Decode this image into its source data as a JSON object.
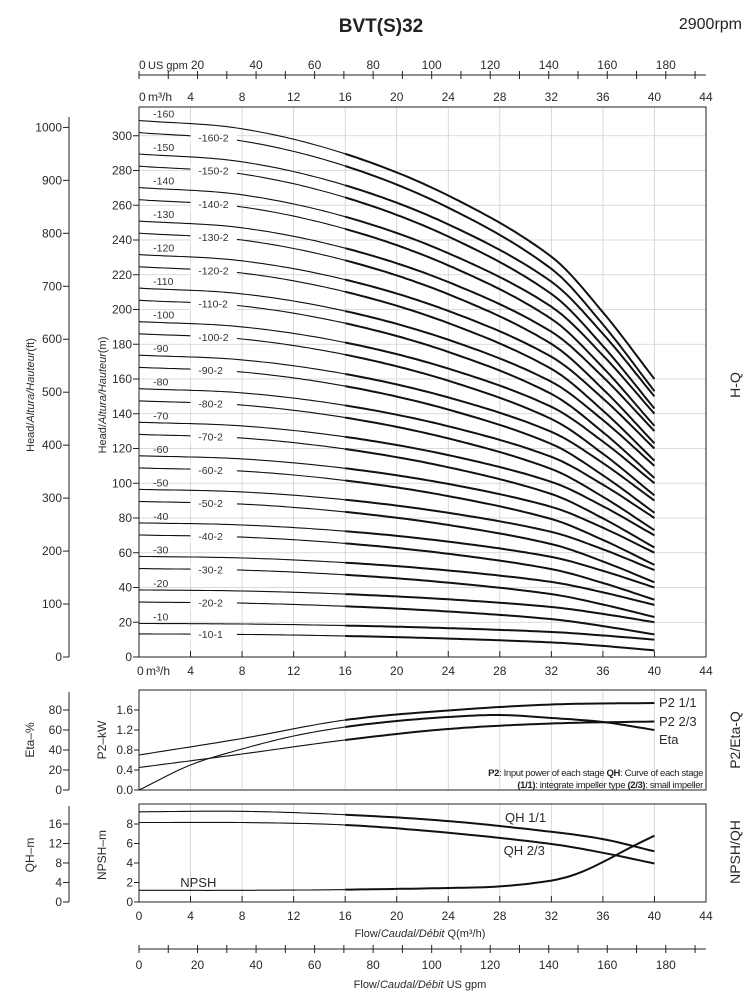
{
  "header": {
    "title": "BVT(S)32",
    "speed": "2900rpm"
  },
  "axes": {
    "top_gpm_unit": "US gpm",
    "m3h_unit": "m³/h",
    "gpm_ticks": [
      0,
      20,
      40,
      60,
      80,
      100,
      120,
      140,
      160,
      180
    ],
    "q_ticks": [
      0,
      4,
      8,
      12,
      16,
      20,
      24,
      28,
      32,
      36,
      40,
      44
    ],
    "caption_q": {
      "a": "Flow/",
      "b": "Caudal/Débit",
      "c": " Q(m³/h)"
    },
    "caption_gpm": {
      "a": "Flow/",
      "b": "Caudal/Débit",
      "c": "  US gpm"
    }
  },
  "chart_data": [
    {
      "type": "line",
      "title": "H-Q",
      "ylabel_m": {
        "a": "Head/",
        "b": "Altura/Hauteur",
        "c": "(m)"
      },
      "ylabel_ft": {
        "a": "Head/",
        "b": "Altura/Hauteur",
        "c": "(ft)"
      },
      "xlim": [
        0,
        44
      ],
      "ylim_m": [
        0,
        316
      ],
      "yticks_m": [
        0,
        20,
        40,
        60,
        80,
        100,
        120,
        140,
        160,
        180,
        200,
        220,
        240,
        260,
        280,
        300
      ],
      "yticks_ft": [
        0,
        100,
        200,
        300,
        400,
        500,
        600,
        700,
        800,
        900,
        1000
      ],
      "grid": true,
      "x": [
        0,
        8,
        16,
        24,
        32,
        36,
        40
      ],
      "series": [
        {
          "name": "-160",
          "values": [
            308.8,
            304,
            289.6,
            265.6,
            230.4,
            198.4,
            160
          ]
        },
        {
          "name": "-160-2",
          "values": [
            301.8,
            297,
            282.6,
            258.6,
            223.4,
            191.4,
            153
          ]
        },
        {
          "name": "-150",
          "values": [
            289.5,
            285,
            271.5,
            249,
            216,
            186,
            150
          ]
        },
        {
          "name": "-150-2",
          "values": [
            282.5,
            278,
            264.5,
            242,
            209,
            179,
            143
          ]
        },
        {
          "name": "-140",
          "values": [
            270.2,
            266,
            253.4,
            232.4,
            201.6,
            173.6,
            140
          ]
        },
        {
          "name": "-140-2",
          "values": [
            263.2,
            259,
            246.4,
            225.4,
            194.6,
            166.6,
            133
          ]
        },
        {
          "name": "-130",
          "values": [
            250.9,
            247,
            235.3,
            215.8,
            187.2,
            161.2,
            130
          ]
        },
        {
          "name": "-130-2",
          "values": [
            243.9,
            240,
            228.3,
            208.8,
            180.2,
            154.2,
            123
          ]
        },
        {
          "name": "-120",
          "values": [
            231.6,
            228,
            217.2,
            199.2,
            172.8,
            148.8,
            120
          ]
        },
        {
          "name": "-120-2",
          "values": [
            224.6,
            221,
            210.2,
            192.2,
            165.8,
            141.8,
            113
          ]
        },
        {
          "name": "-110",
          "values": [
            212.3,
            209,
            199.1,
            182.6,
            158.4,
            136.4,
            110
          ]
        },
        {
          "name": "-110-2",
          "values": [
            205.3,
            202,
            192.1,
            175.6,
            151.4,
            129.4,
            103
          ]
        },
        {
          "name": "-100",
          "values": [
            193,
            190,
            181,
            166,
            144,
            124,
            100
          ]
        },
        {
          "name": "-100-2",
          "values": [
            186,
            183,
            174,
            159,
            137,
            117,
            93
          ]
        },
        {
          "name": "-90",
          "values": [
            173.7,
            171,
            162.9,
            149.4,
            129.6,
            111.6,
            90
          ]
        },
        {
          "name": "-90-2",
          "values": [
            166.7,
            164,
            155.9,
            142.4,
            122.6,
            104.6,
            83
          ]
        },
        {
          "name": "-80",
          "values": [
            154.4,
            152,
            144.8,
            132.8,
            115.2,
            99.2,
            80
          ]
        },
        {
          "name": "-80-2",
          "values": [
            147.4,
            145,
            137.8,
            125.8,
            108.2,
            92.2,
            73
          ]
        },
        {
          "name": "-70",
          "values": [
            135.1,
            133,
            126.7,
            116.2,
            100.8,
            86.8,
            70
          ]
        },
        {
          "name": "-70-2",
          "values": [
            128.1,
            126,
            119.7,
            109.2,
            93.8,
            79.8,
            63
          ]
        },
        {
          "name": "-60",
          "values": [
            115.8,
            114,
            108.6,
            99.6,
            86.4,
            74.4,
            60
          ]
        },
        {
          "name": "-60-2",
          "values": [
            108.8,
            107,
            101.6,
            92.6,
            79.4,
            67.4,
            53
          ]
        },
        {
          "name": "-50",
          "values": [
            96.5,
            95,
            90.5,
            83,
            72,
            62,
            50
          ]
        },
        {
          "name": "-50-2",
          "values": [
            89.5,
            88,
            83.5,
            76,
            65,
            55,
            43
          ]
        },
        {
          "name": "-40",
          "values": [
            77.2,
            76,
            72.4,
            66.4,
            57.6,
            49.6,
            40
          ]
        },
        {
          "name": "-40-2",
          "values": [
            70.2,
            69,
            65.4,
            59.4,
            50.6,
            42.6,
            33
          ]
        },
        {
          "name": "-30",
          "values": [
            57.9,
            57,
            54.3,
            49.8,
            43.2,
            37.2,
            30
          ]
        },
        {
          "name": "-30-2",
          "values": [
            50.9,
            50,
            47.3,
            42.8,
            36.2,
            30.2,
            23
          ]
        },
        {
          "name": "-20",
          "values": [
            38.6,
            38,
            36.2,
            33.2,
            28.8,
            24.8,
            20
          ]
        },
        {
          "name": "-20-2",
          "values": [
            31.6,
            31,
            29.2,
            26.2,
            21.8,
            17.8,
            13
          ]
        },
        {
          "name": "-10",
          "values": [
            19.3,
            19,
            18.1,
            16.6,
            14.4,
            12.4,
            10
          ]
        },
        {
          "name": "-10-1",
          "values": [
            13.3,
            13,
            12.1,
            10.6,
            8.4,
            6.4,
            3.8
          ]
        }
      ]
    },
    {
      "type": "line",
      "title": "P2/Eta-Q",
      "ylabel_p2": "P2–kW",
      "ylabel_eta": "Eta–%",
      "xlim": [
        0,
        44
      ],
      "ylim_p2": [
        0,
        2.0
      ],
      "yticks_p2": [
        "0.0",
        "0.4",
        "0.8",
        "1.2",
        "1.6"
      ],
      "yticks_eta": [
        0,
        20,
        40,
        60,
        80
      ],
      "series": [
        {
          "name": "P2 1/1",
          "unit": "kW",
          "x": [
            0,
            8,
            16,
            24,
            32,
            40
          ],
          "values": [
            0.7,
            1.03,
            1.4,
            1.59,
            1.71,
            1.74
          ]
        },
        {
          "name": "P2 2/3",
          "unit": "kW",
          "x": [
            0,
            8,
            16,
            24,
            32,
            40
          ],
          "values": [
            0.45,
            0.72,
            1.0,
            1.22,
            1.33,
            1.37
          ]
        },
        {
          "name": "Eta",
          "unit": "%",
          "x": [
            0,
            4,
            8,
            12,
            16,
            20,
            24,
            28,
            32,
            36,
            40
          ],
          "values": [
            0,
            25,
            41,
            54,
            63,
            69,
            73,
            75,
            72,
            68,
            60
          ]
        }
      ],
      "note": {
        "l1a": "P2",
        "l1b": ": Input power of each stage ",
        "l1c": "QH",
        "l1d": ": Curve of each stage",
        "l2a": "(1/1)",
        "l2b": ": integrate impeller type ",
        "l2c": "(2/3)",
        "l2d": ": small impeller"
      }
    },
    {
      "type": "line",
      "title": "NPSH/QH",
      "ylabel_npsh": "NPSH–m",
      "ylabel_qh": "QH–m",
      "xlim": [
        0,
        44
      ],
      "ylim_npsh": [
        0,
        10
      ],
      "yticks_npsh": [
        0,
        2,
        4,
        6,
        8
      ],
      "yticks_qh": [
        0,
        4,
        8,
        12,
        16
      ],
      "series": [
        {
          "name": "QH 1/1",
          "unit": "m",
          "x": [
            0,
            8,
            16,
            24,
            32,
            36,
            40
          ],
          "values": [
            18.5,
            18.6,
            17.9,
            16.6,
            14.4,
            12.9,
            10.4
          ]
        },
        {
          "name": "QH 2/3",
          "unit": "m",
          "x": [
            0,
            8,
            16,
            24,
            32,
            36,
            40
          ],
          "values": [
            16.3,
            16.3,
            15.8,
            14.2,
            11.9,
            10.1,
            7.9
          ]
        },
        {
          "name": "NPSH",
          "unit": "m",
          "x": [
            0,
            8,
            16,
            24,
            28,
            32,
            34,
            36,
            38,
            40
          ],
          "values": [
            1.2,
            1.2,
            1.27,
            1.44,
            1.6,
            2.2,
            2.9,
            4.1,
            5.5,
            6.8
          ]
        }
      ]
    }
  ]
}
